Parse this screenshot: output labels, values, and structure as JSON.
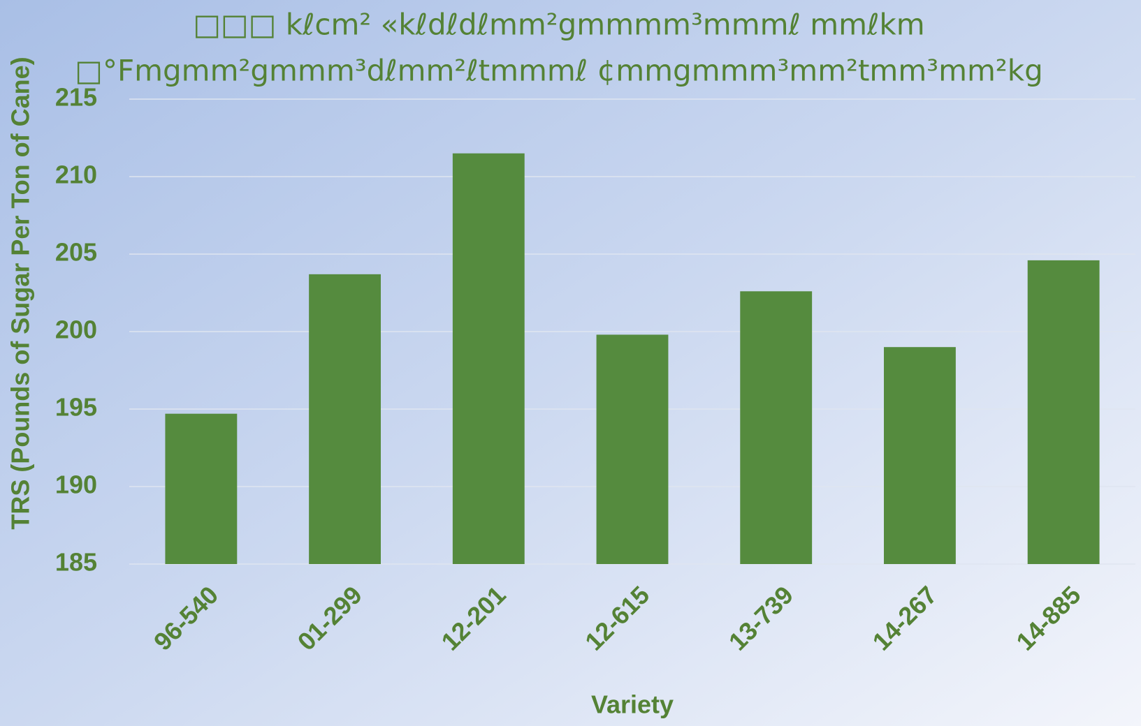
{
  "chart_data": {
    "type": "bar",
    "title": [
      "□□□ kℓcm² «kℓdℓdℓmm²gmmmm³mmmℓ mmℓkm",
      "□°Fmgmm²gmmm³dℓmm²ℓtmmmℓ ¢mmgmmm³mm²tmm³mm²kg"
    ],
    "x_label": "Variety",
    "y_label": "TRS (Pounds of Sugar Per Ton of Cane)",
    "categories": [
      "96-540",
      "01-299",
      "12-201",
      "12-615",
      "13-739",
      "14-267",
      "14-885"
    ],
    "values": [
      194.7,
      203.7,
      211.5,
      199.8,
      202.6,
      199.0,
      204.6
    ],
    "color": "#558b3e",
    "ylim": [
      185,
      215
    ],
    "yticks": [
      185,
      190,
      195,
      200,
      205,
      210,
      215
    ],
    "grid": true
  }
}
